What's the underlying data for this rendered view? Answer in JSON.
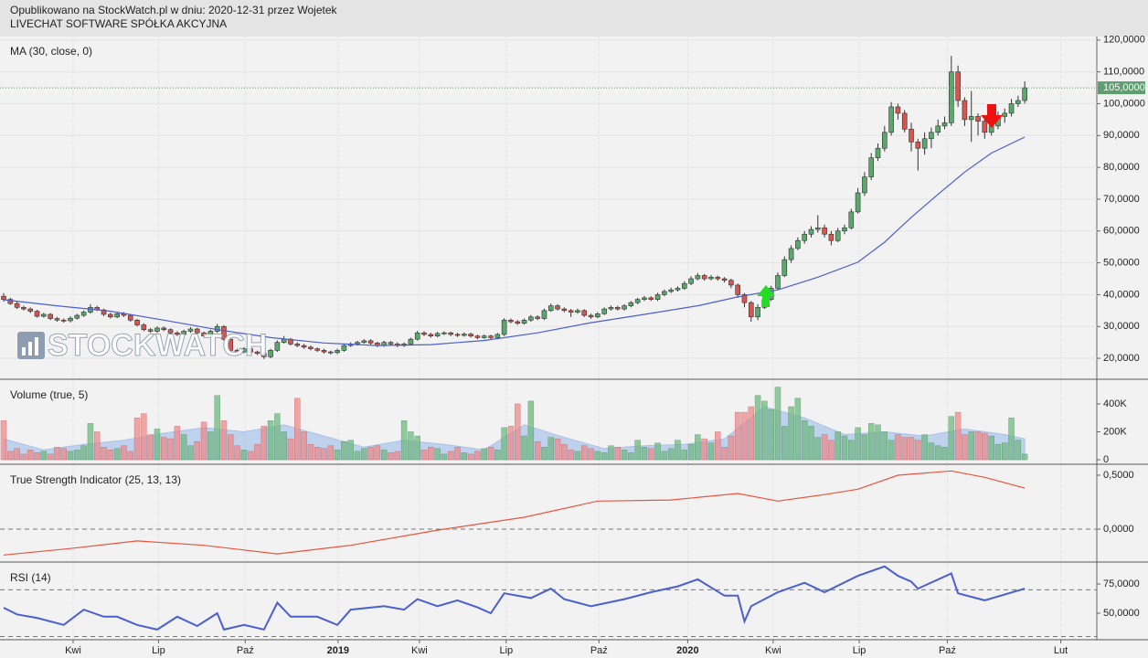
{
  "header": {
    "line1": "Opublikowano na StockWatch.pl w dniu: 2020-12-31 przez Wojetek",
    "line2": "LIVECHAT SOFTWARE SPÓŁKA AKCYJNA"
  },
  "watermark": "STOCKWATCH",
  "chart_data": [
    {
      "type": "candlestick",
      "title": "MA (30, close, 0)",
      "xlim": [
        -0.55,
        163.8
      ],
      "ylim": [
        13.7,
        121.1
      ],
      "grid": true,
      "up_color": "#5aa86b",
      "down_color": "#d9534f",
      "yticks": [
        {
          "value": 120,
          "label": "120,0000"
        },
        {
          "value": 110,
          "label": "110,0000"
        },
        {
          "value": 100,
          "label": "100,0000"
        },
        {
          "value": 90,
          "label": "90,0000"
        },
        {
          "value": 80,
          "label": "80,0000"
        },
        {
          "value": 70,
          "label": "70,0000"
        },
        {
          "value": 60,
          "label": "60,0000"
        },
        {
          "value": 50,
          "label": "50,0000"
        },
        {
          "value": 40,
          "label": "40,0000"
        },
        {
          "value": 30,
          "label": "30,0000"
        },
        {
          "value": 20,
          "label": "20,0000"
        }
      ],
      "open": [
        39.5,
        38.5,
        37.2,
        36.0,
        35.5,
        34.8,
        33.2,
        33.8,
        32.5,
        32.0,
        31.8,
        32.6,
        33.5,
        34.5,
        36.0,
        35.2,
        33.8,
        33.0,
        34.0,
        33.5,
        32.0,
        30.5,
        29.0,
        28.5,
        29.5,
        29.0,
        28.0,
        27.5,
        28.5,
        29.2,
        28.0,
        27.0,
        28.5,
        30.0,
        26.0,
        22.5,
        22.0,
        23.0,
        22.0,
        21.5,
        20.5,
        22.5,
        25.0,
        26.0,
        24.5,
        24.0,
        23.5,
        23.0,
        22.5,
        22.0,
        21.8,
        22.5,
        24.0,
        24.5,
        25.0,
        25.5,
        24.8,
        24.0,
        25.0,
        24.5,
        24.0,
        24.5,
        26.0,
        28.0,
        27.5,
        27.0,
        27.8,
        28.0,
        27.5,
        27.2,
        27.6,
        27.0,
        26.5,
        27.0,
        26.5,
        27.5,
        32.0,
        31.5,
        31.0,
        32.0,
        33.0,
        32.5,
        35.0,
        36.5,
        35.5,
        35.0,
        34.5,
        35.0,
        33.5,
        33.0,
        34.0,
        35.5,
        36.0,
        35.5,
        36.5,
        37.5,
        38.5,
        39.0,
        38.5,
        40.0,
        41.0,
        41.5,
        42.0,
        43.5,
        45.0,
        46.0,
        45.0,
        45.5,
        45.0,
        44.5,
        43.0,
        40.0,
        37.5,
        33.0,
        36.0,
        38.5,
        42.0,
        46.0,
        51.0,
        54.5,
        57.0,
        59.0,
        60.5,
        61.0,
        59.0,
        57.0,
        60.0,
        61.0,
        66.0,
        72.0,
        77.0,
        83.0,
        86.0,
        91.0,
        99.0,
        97.0,
        92.0,
        88.0,
        86.0,
        89.0,
        91.0,
        93.0,
        94.0,
        110.0,
        101.0,
        95.0,
        96.0,
        94.5,
        91.0,
        93.0,
        96.0,
        97.0,
        100.0,
        101.0
      ],
      "high": [
        40.5,
        39.0,
        37.8,
        36.5,
        36.0,
        35.2,
        34.3,
        34.2,
        33.0,
        32.5,
        33.2,
        34.0,
        35.0,
        37.0,
        36.5,
        35.6,
        34.3,
        34.6,
        34.5,
        33.9,
        32.4,
        31.0,
        29.5,
        30.0,
        30.0,
        29.4,
        28.5,
        29.0,
        29.8,
        29.6,
        28.4,
        29.0,
        30.8,
        30.4,
        26.4,
        23.0,
        23.5,
        23.4,
        22.4,
        21.9,
        23.0,
        25.6,
        27.0,
        26.4,
        25.0,
        24.5,
        24.0,
        23.4,
        23.0,
        22.4,
        23.0,
        24.5,
        25.0,
        25.5,
        26.0,
        26.0,
        25.2,
        25.5,
        25.4,
        25.0,
        25.0,
        26.5,
        28.6,
        28.5,
        28.0,
        28.3,
        28.5,
        28.4,
        28.0,
        28.1,
        28.0,
        27.4,
        27.5,
        27.4,
        28.0,
        32.6,
        32.5,
        32.0,
        32.5,
        33.6,
        33.5,
        35.6,
        37.2,
        37.0,
        36.0,
        35.5,
        35.6,
        35.4,
        34.0,
        34.5,
        36.0,
        36.6,
        36.5,
        37.0,
        38.0,
        39.0,
        39.6,
        39.5,
        40.6,
        41.6,
        42.2,
        42.6,
        44.2,
        45.8,
        46.8,
        46.5,
        46.2,
        46.0,
        45.5,
        45.0,
        43.5,
        40.5,
        38.0,
        37.0,
        39.5,
        42.8,
        47.0,
        52.0,
        55.5,
        58.0,
        60.0,
        61.5,
        65.0,
        62.0,
        60.0,
        61.0,
        62.0,
        67.0,
        73.5,
        78.5,
        84.5,
        87.5,
        93.0,
        100.5,
        100.0,
        98.0,
        94.0,
        89.0,
        91.0,
        92.5,
        95.0,
        96.0,
        115.0,
        112.0,
        102.0,
        104.0,
        97.0,
        95.5,
        94.0,
        97.5,
        98.5,
        101.5,
        102.5,
        107.0
      ],
      "low": [
        37.8,
        36.8,
        35.5,
        35.0,
        34.2,
        32.8,
        32.8,
        32.0,
        31.5,
        31.2,
        31.3,
        32.2,
        33.0,
        34.0,
        34.8,
        33.3,
        32.5,
        32.6,
        33.0,
        31.5,
        30.0,
        28.5,
        28.0,
        28.0,
        28.5,
        27.5,
        27.0,
        27.0,
        28.0,
        27.5,
        26.5,
        26.6,
        28.0,
        25.5,
        22.0,
        21.5,
        21.6,
        21.5,
        21.0,
        19.8,
        20.0,
        22.0,
        24.6,
        24.0,
        23.5,
        23.0,
        22.5,
        22.0,
        21.5,
        21.2,
        21.3,
        22.1,
        23.6,
        24.0,
        24.6,
        24.3,
        23.5,
        23.6,
        24.0,
        23.5,
        23.6,
        24.0,
        25.6,
        27.0,
        26.5,
        26.6,
        27.3,
        27.0,
        26.7,
        26.8,
        26.5,
        26.0,
        26.1,
        26.0,
        26.0,
        27.0,
        31.0,
        30.5,
        30.6,
        31.5,
        32.0,
        32.0,
        34.6,
        35.0,
        34.5,
        33.0,
        34.0,
        33.0,
        32.4,
        32.6,
        33.6,
        35.0,
        35.0,
        35.0,
        36.0,
        37.0,
        38.0,
        38.0,
        38.0,
        39.5,
        40.5,
        41.0,
        41.5,
        43.0,
        44.5,
        44.4,
        44.5,
        44.4,
        43.8,
        42.0,
        39.0,
        36.0,
        31.5,
        32.0,
        35.5,
        38.0,
        41.5,
        45.5,
        50.0,
        54.0,
        56.0,
        58.0,
        59.5,
        58.0,
        55.5,
        56.5,
        59.0,
        60.5,
        65.5,
        71.0,
        76.0,
        82.0,
        85.0,
        90.0,
        95.0,
        91.0,
        85.0,
        79.0,
        84.0,
        86.0,
        90.0,
        92.0,
        93.0,
        99.0,
        93.0,
        88.0,
        90.0,
        89.0,
        90.0,
        92.0,
        94.0,
        96.0,
        99.0,
        100.0
      ],
      "close": [
        38.5,
        37.2,
        36.0,
        35.5,
        34.8,
        33.2,
        33.8,
        32.5,
        32.0,
        31.8,
        32.6,
        33.5,
        34.5,
        36.0,
        35.2,
        33.8,
        33.0,
        34.0,
        33.5,
        32.0,
        30.5,
        29.0,
        28.5,
        29.5,
        29.0,
        28.0,
        27.5,
        28.5,
        29.2,
        28.0,
        27.0,
        28.5,
        30.0,
        26.0,
        22.5,
        22.0,
        23.0,
        22.0,
        21.5,
        20.5,
        22.5,
        25.0,
        26.0,
        24.5,
        24.0,
        23.5,
        23.0,
        22.5,
        22.0,
        21.8,
        22.5,
        24.0,
        24.5,
        25.0,
        25.5,
        24.8,
        24.0,
        25.0,
        24.5,
        24.0,
        24.5,
        26.0,
        28.0,
        27.5,
        27.0,
        27.8,
        28.0,
        27.5,
        27.2,
        27.6,
        27.0,
        26.5,
        27.0,
        26.5,
        27.5,
        32.0,
        31.5,
        31.0,
        32.0,
        33.0,
        32.5,
        35.0,
        36.5,
        35.5,
        35.0,
        34.5,
        35.0,
        33.5,
        33.0,
        34.0,
        35.5,
        36.0,
        35.5,
        36.5,
        37.5,
        38.5,
        39.0,
        38.5,
        40.0,
        41.0,
        41.5,
        42.0,
        43.5,
        45.0,
        46.0,
        45.0,
        45.5,
        45.0,
        44.5,
        43.0,
        40.0,
        37.5,
        33.0,
        36.0,
        38.5,
        42.0,
        46.0,
        51.0,
        54.5,
        57.0,
        59.0,
        60.5,
        61.0,
        59.0,
        57.0,
        60.0,
        61.0,
        66.0,
        72.0,
        77.0,
        83.0,
        86.0,
        91.0,
        99.0,
        97.0,
        92.0,
        88.0,
        86.0,
        89.0,
        91.0,
        93.0,
        94.0,
        110.0,
        101.0,
        95.0,
        96.0,
        94.5,
        91.0,
        93.0,
        96.0,
        97.0,
        100.0,
        101.0,
        105.0
      ],
      "ma": {
        "color": "#4a5fd0",
        "x": [
          0,
          8,
          16,
          24,
          32,
          40,
          48,
          56,
          64,
          72,
          80,
          88,
          96,
          104,
          110,
          116,
          122,
          128,
          132,
          136,
          140,
          144,
          148,
          153
        ],
        "values": [
          38.4,
          36.5,
          34.8,
          32.0,
          29.0,
          26.5,
          24.8,
          24.0,
          24.3,
          25.6,
          28.0,
          31.2,
          33.8,
          36.5,
          39.3,
          41.5,
          45.5,
          50.2,
          56.5,
          64.3,
          71.5,
          78.5,
          84.5,
          89.5
        ]
      },
      "last_price": {
        "value": 105,
        "label": "105,0000"
      }
    },
    {
      "type": "bar",
      "title": "Volume (true, 5)",
      "xlim": [
        -0.55,
        163.8
      ],
      "ylim": [
        -26000,
        570000
      ],
      "up_color": "#6fba7f",
      "down_color": "#f08a8a",
      "yticks": [
        {
          "value": 400000,
          "label": "400K"
        },
        {
          "value": 200000,
          "label": "200K"
        },
        0
      ],
      "values": [
        280000,
        60000,
        80000,
        40000,
        70000,
        50000,
        60000,
        40000,
        90000,
        80000,
        60000,
        70000,
        100000,
        260000,
        200000,
        90000,
        70000,
        80000,
        100000,
        60000,
        300000,
        330000,
        180000,
        220000,
        160000,
        150000,
        240000,
        180000,
        100000,
        130000,
        270000,
        200000,
        460000,
        280000,
        180000,
        100000,
        70000,
        60000,
        110000,
        240000,
        280000,
        330000,
        200000,
        150000,
        440000,
        200000,
        110000,
        90000,
        80000,
        100000,
        70000,
        130000,
        140000,
        60000,
        80000,
        90000,
        100000,
        70000,
        50000,
        60000,
        280000,
        200000,
        170000,
        70000,
        90000,
        80000,
        40000,
        60000,
        90000,
        50000,
        40000,
        60000,
        80000,
        90000,
        70000,
        230000,
        240000,
        400000,
        170000,
        420000,
        130000,
        90000,
        160000,
        150000,
        110000,
        70000,
        60000,
        100000,
        80000,
        60000,
        50000,
        100000,
        90000,
        70000,
        50000,
        140000,
        90000,
        80000,
        120000,
        60000,
        80000,
        140000,
        70000,
        110000,
        180000,
        150000,
        120000,
        200000,
        90000,
        170000,
        340000,
        340000,
        380000,
        460000,
        420000,
        360000,
        520000,
        240000,
        380000,
        440000,
        280000,
        240000,
        160000,
        180000,
        140000,
        200000,
        170000,
        140000,
        230000,
        180000,
        260000,
        250000,
        200000,
        140000,
        180000,
        160000,
        160000,
        140000,
        180000,
        120000,
        100000,
        90000,
        310000,
        340000,
        180000,
        200000,
        200000,
        190000,
        170000,
        110000,
        120000,
        300000,
        140000,
        40000
      ],
      "ma": {
        "color": "#a9c4ec",
        "x": [
          0,
          6,
          12,
          18,
          24,
          30,
          36,
          42,
          48,
          54,
          60,
          66,
          72,
          78,
          84,
          90,
          96,
          102,
          108,
          114,
          120,
          126,
          132,
          138,
          144,
          150,
          153
        ],
        "values": [
          150000,
          70000,
          110000,
          140000,
          190000,
          230000,
          200000,
          250000,
          170000,
          90000,
          140000,
          110000,
          70000,
          250000,
          160000,
          80000,
          100000,
          110000,
          150000,
          380000,
          300000,
          180000,
          200000,
          170000,
          220000,
          180000,
          150000
        ]
      }
    },
    {
      "type": "line",
      "title": "True Strength Indicator (25, 13, 13)",
      "xlim": [
        -0.55,
        163.8
      ],
      "ylim": [
        -0.297,
        0.593
      ],
      "color": "#e8553e",
      "yticks": [
        {
          "value": 0.5,
          "label": "0,5000"
        },
        {
          "value": 0,
          "label": "0,0000"
        }
      ],
      "bands": [
        0
      ],
      "x": [
        0,
        10,
        20,
        30,
        41,
        52,
        65,
        78,
        89,
        100,
        110,
        116,
        123,
        128,
        134,
        142,
        147,
        153
      ],
      "values": [
        -0.24,
        -0.18,
        -0.11,
        -0.15,
        -0.23,
        -0.15,
        -0.01,
        0.11,
        0.26,
        0.27,
        0.33,
        0.26,
        0.32,
        0.37,
        0.5,
        0.54,
        0.48,
        0.38
      ]
    },
    {
      "type": "line",
      "title": "RSI (14)",
      "xlim": [
        -0.55,
        163.8
      ],
      "ylim": [
        27.3,
        93
      ],
      "color": "#4a5fd0",
      "yticks": [
        {
          "value": 75,
          "label": "75,0000"
        },
        {
          "value": 50,
          "label": "50,0000"
        }
      ],
      "bands": [
        70,
        30
      ],
      "xticks": [
        {
          "value": 10.4,
          "label": "Kwi"
        },
        {
          "value": 23.2,
          "label": "Lip"
        },
        {
          "value": 36.2,
          "label": "Paź"
        },
        {
          "value": 50.1,
          "label": "2019"
        },
        {
          "value": 62.3,
          "label": "Kwi"
        },
        {
          "value": 75.3,
          "label": "Lip"
        },
        {
          "value": 89.2,
          "label": "Paź"
        },
        {
          "value": 102.5,
          "label": "2020"
        },
        {
          "value": 115.3,
          "label": "Kwi"
        },
        {
          "value": 128.2,
          "label": "Lip"
        },
        {
          "value": 141.4,
          "label": "Paź"
        },
        {
          "value": 158.4,
          "label": "Lut"
        }
      ],
      "x": [
        0,
        2,
        5,
        9,
        12,
        15,
        17,
        20,
        23,
        26,
        29,
        32,
        33,
        36,
        39,
        41,
        43,
        47,
        50,
        52,
        57,
        60,
        62,
        65,
        68,
        71,
        73,
        75,
        79,
        82,
        84,
        88,
        93,
        97,
        101,
        104,
        108,
        110,
        111,
        112,
        116,
        120,
        123,
        128,
        132,
        134,
        136,
        137,
        142,
        143,
        147,
        153
      ],
      "values": [
        54.7,
        49,
        46,
        40,
        53,
        47,
        47,
        40,
        36,
        47,
        39,
        50,
        36,
        40,
        36,
        59,
        47,
        47,
        40,
        53,
        56,
        53,
        62,
        56,
        61,
        55,
        50,
        67,
        63,
        71,
        62,
        56,
        62,
        68,
        73,
        79,
        65,
        65,
        43,
        56,
        68,
        76,
        68,
        82,
        90,
        82,
        77,
        71,
        84,
        67,
        61,
        71
      ]
    }
  ]
}
